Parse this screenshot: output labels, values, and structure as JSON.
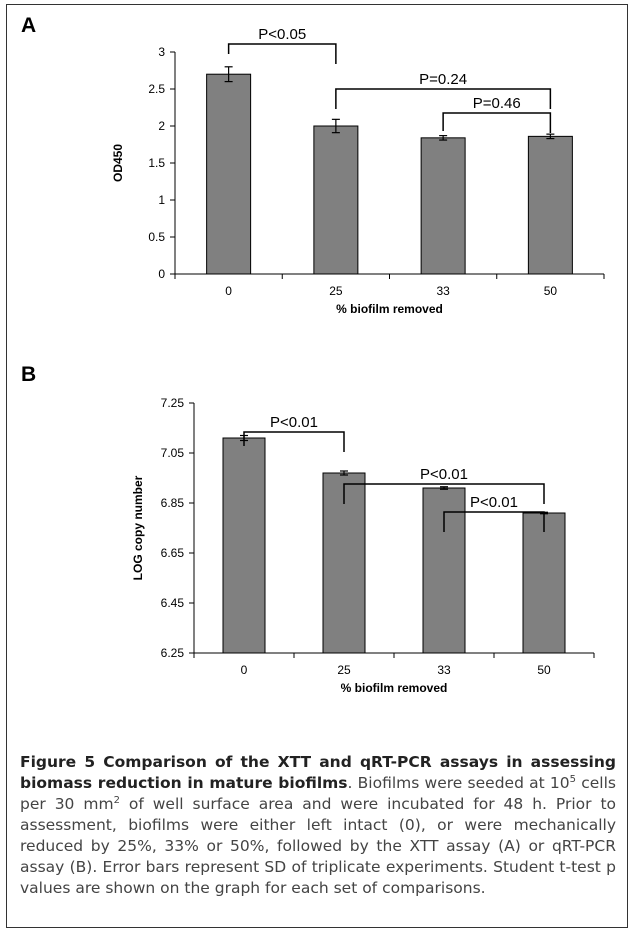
{
  "chart_data": [
    {
      "type": "bar",
      "panel": "A",
      "categories": [
        "0",
        "25",
        "33",
        "50"
      ],
      "values": [
        2.7,
        2.0,
        1.84,
        1.86
      ],
      "errors": [
        0.1,
        0.09,
        0.03,
        0.03
      ],
      "ylabel": "OD450",
      "xlabel": "% biofilm removed",
      "ylim": [
        0,
        3
      ],
      "yticks": [
        "0",
        "0.5",
        "1",
        "1.5",
        "2",
        "2.5",
        "3"
      ],
      "bar_color": "#808080",
      "comparisons": [
        {
          "from": "0",
          "to": "25",
          "label": "P<0.05"
        },
        {
          "from": "25",
          "to": "50",
          "label": "P=0.24"
        },
        {
          "from": "33",
          "to": "50",
          "label": "P=0.46"
        }
      ]
    },
    {
      "type": "bar",
      "panel": "B",
      "categories": [
        "0",
        "25",
        "33",
        "50"
      ],
      "values": [
        7.11,
        6.97,
        6.91,
        6.81
      ],
      "errors": [
        0.01,
        0.008,
        0.005,
        0.003
      ],
      "ylabel": "LOG copy number",
      "xlabel": "% biofilm removed",
      "ylim": [
        6.25,
        7.25
      ],
      "yticks": [
        "6.25",
        "6.45",
        "6.65",
        "6.85",
        "7.05",
        "7.25"
      ],
      "bar_color": "#808080",
      "comparisons": [
        {
          "from": "0",
          "to": "25",
          "label": "P<0.01"
        },
        {
          "from": "25",
          "to": "50",
          "label": "P<0.01"
        },
        {
          "from": "33",
          "to": "50",
          "label": "P<0.01"
        }
      ]
    }
  ],
  "caption": {
    "title": "Figure 5 Comparison of the XTT and qRT-PCR assays in assessing biomass reduction in mature biofilms",
    "text_1": ". Biofilms were seeded at 10",
    "sup_1": "5",
    "text_2": " cells per 30 mm",
    "sup_2": "2",
    "text_3": " of well surface area and were incubated for 48 h. Prior to assessment, biofilms were either left intact (0), or were mechanically reduced by 25%, 33% or 50%, followed by the XTT assay (A) or qRT-PCR assay (B). Error bars represent SD of triplicate experiments. Student t-test p values are shown on the graph for each set of comparisons."
  }
}
